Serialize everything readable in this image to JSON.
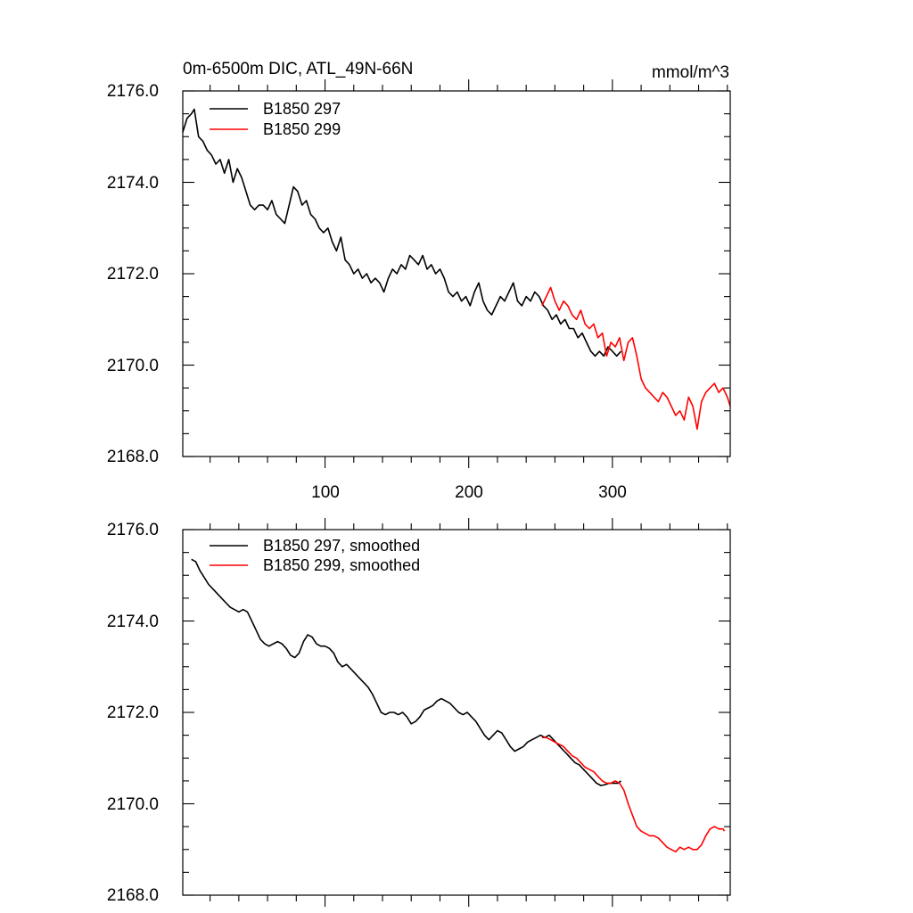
{
  "chart_data": [
    {
      "type": "line",
      "title": "0m-6500m DIC, ATL_49N-66N",
      "units": "mmol/m^3",
      "xlim": [
        1,
        382
      ],
      "ylim": [
        2168.0,
        2176.0
      ],
      "xticks": [
        100,
        200,
        300
      ],
      "xtick_labels": [
        "100",
        "200",
        "300"
      ],
      "yticks": [
        2168.0,
        2170.0,
        2172.0,
        2174.0,
        2176.0
      ],
      "ytick_labels": [
        "2168.0",
        "2170.0",
        "2172.0",
        "2174.0",
        "2176.0"
      ],
      "legend_position": "top-left",
      "series": [
        {
          "name": "B1850 297",
          "color": "#000000",
          "x": [
            1,
            4,
            7,
            9,
            12,
            15,
            18,
            21,
            24,
            27,
            30,
            33,
            36,
            39,
            42,
            45,
            48,
            51,
            54,
            57,
            60,
            63,
            66,
            69,
            72,
            75,
            78,
            81,
            84,
            87,
            90,
            93,
            96,
            99,
            102,
            105,
            108,
            111,
            114,
            117,
            120,
            123,
            126,
            129,
            132,
            135,
            138,
            141,
            144,
            147,
            150,
            153,
            156,
            159,
            162,
            165,
            168,
            171,
            174,
            177,
            180,
            183,
            186,
            189,
            192,
            195,
            198,
            201,
            204,
            207,
            210,
            213,
            216,
            219,
            222,
            225,
            228,
            231,
            234,
            237,
            240,
            243,
            246,
            249,
            252,
            255,
            258,
            261,
            264,
            267,
            270,
            273,
            276,
            279,
            282,
            285,
            288,
            291,
            294,
            297,
            300,
            303,
            306
          ],
          "values": [
            2175.1,
            2175.4,
            2175.5,
            2175.6,
            2175.0,
            2174.9,
            2174.7,
            2174.6,
            2174.4,
            2174.5,
            2174.2,
            2174.5,
            2174.0,
            2174.3,
            2174.1,
            2173.8,
            2173.5,
            2173.4,
            2173.5,
            2173.5,
            2173.4,
            2173.6,
            2173.3,
            2173.2,
            2173.1,
            2173.5,
            2173.9,
            2173.8,
            2173.5,
            2173.6,
            2173.3,
            2173.2,
            2173.0,
            2172.9,
            2173.0,
            2172.7,
            2172.5,
            2172.8,
            2172.3,
            2172.2,
            2172.0,
            2172.1,
            2171.9,
            2172.0,
            2171.8,
            2171.9,
            2171.8,
            2171.6,
            2171.9,
            2172.1,
            2172.0,
            2172.2,
            2172.1,
            2172.4,
            2172.3,
            2172.2,
            2172.4,
            2172.1,
            2172.2,
            2172.0,
            2172.1,
            2171.9,
            2171.6,
            2171.5,
            2171.6,
            2171.4,
            2171.5,
            2171.3,
            2171.6,
            2171.8,
            2171.4,
            2171.2,
            2171.1,
            2171.3,
            2171.5,
            2171.4,
            2171.6,
            2171.8,
            2171.4,
            2171.3,
            2171.5,
            2171.4,
            2171.6,
            2171.5,
            2171.3,
            2171.2,
            2171.0,
            2171.1,
            2170.9,
            2171.0,
            2170.8,
            2170.8,
            2170.6,
            2170.7,
            2170.5,
            2170.3,
            2170.2,
            2170.3,
            2170.2,
            2170.4,
            2170.3,
            2170.2,
            2170.3
          ]
        },
        {
          "name": "B1850 299",
          "color": "#ff0000",
          "x": [
            251,
            254,
            257,
            260,
            263,
            266,
            269,
            272,
            275,
            278,
            281,
            284,
            287,
            290,
            293,
            296,
            299,
            302,
            305,
            308,
            311,
            314,
            317,
            320,
            323,
            326,
            329,
            332,
            335,
            338,
            341,
            344,
            347,
            350,
            353,
            356,
            359,
            362,
            365,
            368,
            371,
            374,
            377,
            380,
            382
          ],
          "values": [
            2171.3,
            2171.5,
            2171.7,
            2171.4,
            2171.2,
            2171.4,
            2171.3,
            2171.1,
            2171.0,
            2171.2,
            2170.9,
            2170.8,
            2170.9,
            2170.6,
            2170.7,
            2170.2,
            2170.5,
            2170.4,
            2170.6,
            2170.1,
            2170.5,
            2170.6,
            2170.2,
            2169.7,
            2169.5,
            2169.4,
            2169.3,
            2169.2,
            2169.4,
            2169.3,
            2169.1,
            2168.9,
            2169.0,
            2168.8,
            2169.3,
            2169.1,
            2168.6,
            2169.2,
            2169.4,
            2169.5,
            2169.6,
            2169.4,
            2169.5,
            2169.3,
            2169.1
          ]
        }
      ]
    },
    {
      "type": "line",
      "xlim": [
        1,
        382
      ],
      "ylim": [
        2168.0,
        2176.0
      ],
      "xticks": [
        100,
        200,
        300
      ],
      "yticks": [
        2168.0,
        2170.0,
        2172.0,
        2174.0,
        2176.0
      ],
      "ytick_labels": [
        "2168.0",
        "2170.0",
        "2172.0",
        "2174.0",
        "2176.0"
      ],
      "legend_position": "top-left",
      "series": [
        {
          "name": "B1850 297, smoothed",
          "color": "#000000",
          "x": [
            7,
            10,
            13,
            16,
            19,
            22,
            25,
            28,
            31,
            34,
            37,
            40,
            43,
            46,
            49,
            52,
            55,
            58,
            61,
            64,
            67,
            70,
            73,
            76,
            79,
            82,
            85,
            88,
            91,
            94,
            97,
            100,
            103,
            106,
            109,
            112,
            115,
            118,
            121,
            124,
            127,
            130,
            133,
            136,
            139,
            142,
            145,
            148,
            151,
            154,
            157,
            160,
            163,
            166,
            169,
            172,
            175,
            178,
            181,
            184,
            187,
            190,
            193,
            196,
            199,
            202,
            205,
            208,
            211,
            214,
            217,
            220,
            223,
            226,
            229,
            232,
            235,
            238,
            241,
            244,
            247,
            250,
            253,
            256,
            259,
            262,
            265,
            268,
            271,
            274,
            277,
            280,
            283,
            286,
            289,
            292,
            295,
            298,
            301,
            304,
            306
          ],
          "values": [
            2175.35,
            2175.3,
            2175.1,
            2174.95,
            2174.8,
            2174.7,
            2174.6,
            2174.5,
            2174.4,
            2174.3,
            2174.25,
            2174.2,
            2174.25,
            2174.2,
            2174.0,
            2173.8,
            2173.6,
            2173.5,
            2173.45,
            2173.5,
            2173.55,
            2173.5,
            2173.4,
            2173.25,
            2173.2,
            2173.3,
            2173.55,
            2173.7,
            2173.65,
            2173.5,
            2173.45,
            2173.45,
            2173.4,
            2173.3,
            2173.1,
            2173.0,
            2173.05,
            2172.95,
            2172.85,
            2172.75,
            2172.65,
            2172.55,
            2172.4,
            2172.2,
            2172.0,
            2171.95,
            2172.0,
            2172.0,
            2171.95,
            2172.0,
            2171.9,
            2171.75,
            2171.8,
            2171.9,
            2172.05,
            2172.1,
            2172.15,
            2172.25,
            2172.3,
            2172.25,
            2172.2,
            2172.1,
            2172.0,
            2171.95,
            2172.0,
            2171.9,
            2171.8,
            2171.65,
            2171.5,
            2171.4,
            2171.5,
            2171.6,
            2171.55,
            2171.4,
            2171.25,
            2171.15,
            2171.2,
            2171.25,
            2171.35,
            2171.4,
            2171.45,
            2171.5,
            2171.45,
            2171.5,
            2171.4,
            2171.3,
            2171.2,
            2171.1,
            2171.0,
            2170.9,
            2170.85,
            2170.75,
            2170.65,
            2170.55,
            2170.45,
            2170.4,
            2170.42,
            2170.45,
            2170.45,
            2170.45,
            2170.5
          ]
        },
        {
          "name": "B1850 299, smoothed",
          "color": "#ff0000",
          "x": [
            251,
            254,
            257,
            260,
            263,
            266,
            269,
            272,
            275,
            278,
            281,
            284,
            287,
            290,
            293,
            296,
            299,
            302,
            305,
            308,
            311,
            314,
            317,
            320,
            323,
            326,
            329,
            332,
            335,
            338,
            341,
            344,
            347,
            350,
            353,
            356,
            359,
            362,
            365,
            368,
            371,
            374,
            377,
            378
          ],
          "values": [
            2171.45,
            2171.45,
            2171.4,
            2171.35,
            2171.3,
            2171.25,
            2171.15,
            2171.05,
            2171.0,
            2170.9,
            2170.8,
            2170.75,
            2170.7,
            2170.6,
            2170.5,
            2170.45,
            2170.45,
            2170.5,
            2170.45,
            2170.3,
            2170.0,
            2169.75,
            2169.5,
            2169.4,
            2169.35,
            2169.3,
            2169.3,
            2169.25,
            2169.15,
            2169.05,
            2169.0,
            2168.95,
            2169.05,
            2169.0,
            2169.05,
            2169.0,
            2169.0,
            2169.1,
            2169.3,
            2169.45,
            2169.5,
            2169.45,
            2169.45,
            2169.4
          ]
        }
      ]
    }
  ]
}
